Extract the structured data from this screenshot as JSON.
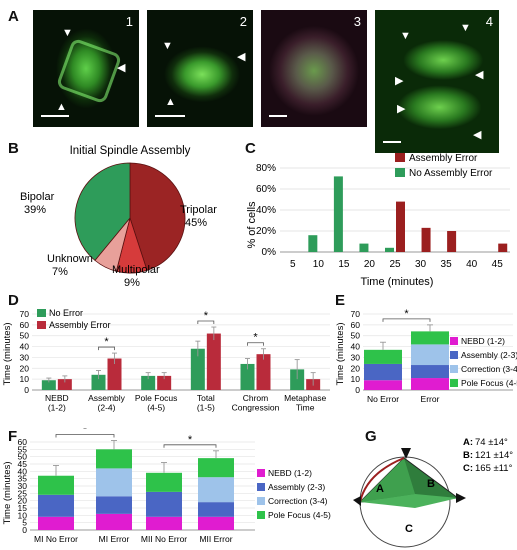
{
  "panel_letters": {
    "a": "A",
    "b": "B",
    "c": "C",
    "d": "D",
    "e": "E",
    "f": "F",
    "g": "G"
  },
  "panel_a": {
    "images": [
      {
        "number": "1"
      },
      {
        "number": "2"
      },
      {
        "number": "3"
      },
      {
        "number": "4"
      }
    ]
  },
  "chart_data": [
    {
      "id": "B",
      "type": "pie",
      "title": "Initial Spindle Assembly",
      "slices": [
        {
          "label": "Tripolar",
          "value": 45,
          "pct": "45%",
          "color": "#9b2424"
        },
        {
          "label": "Multipolar",
          "value": 9,
          "pct": "9%",
          "color": "#d63b3b"
        },
        {
          "label": "Unknown",
          "value": 7,
          "pct": "7%",
          "color": "#e8a09a"
        },
        {
          "label": "Bipolar",
          "value": 39,
          "pct": "39%",
          "color": "#2e9c5a"
        }
      ]
    },
    {
      "id": "C",
      "type": "bar",
      "xlabel": "Time (minutes)",
      "ylabel": "% of cells",
      "ylim": [
        0,
        80
      ],
      "yticks": [
        "0%",
        "20%",
        "40%",
        "60%",
        "80%"
      ],
      "categories": [
        "5",
        "10",
        "15",
        "20",
        "25",
        "30",
        "35",
        "40",
        "45"
      ],
      "series": [
        {
          "name": "Assembly Error",
          "color": "#9b1f1f",
          "values": [
            0,
            0,
            0,
            0,
            48,
            23,
            20,
            0,
            8
          ]
        },
        {
          "name": "No Assembly Error",
          "color": "#2e9c5a",
          "values": [
            0,
            16,
            72,
            8,
            4,
            0,
            0,
            0,
            0
          ]
        }
      ]
    },
    {
      "id": "D",
      "type": "bar",
      "ylabel": "Time (minutes)",
      "ylim": [
        0,
        70
      ],
      "yticks": [
        "0",
        "10",
        "20",
        "30",
        "40",
        "50",
        "60",
        "70"
      ],
      "categories": [
        "NEBD\n(1-2)",
        "Assembly\n(2-4)",
        "Pole Focus\n(4-5)",
        "Total\n(1-5)",
        "Chrom\nCongression",
        "Metaphase\nTime"
      ],
      "series": [
        {
          "name": "No Error",
          "color": "#2e9c5a",
          "values": [
            9,
            14,
            13,
            38,
            24,
            19
          ],
          "err": [
            2,
            4,
            3,
            7,
            5,
            9
          ]
        },
        {
          "name": "Assembly Error",
          "color": "#b92b3b",
          "values": [
            10,
            29,
            13,
            52,
            33,
            10
          ],
          "err": [
            3,
            5,
            3,
            6,
            5,
            6
          ]
        }
      ],
      "significance": [
        "Assembly\n(2-4)",
        "Total\n(1-5)",
        "Chrom\nCongression"
      ],
      "sig_mark": "*"
    },
    {
      "id": "E",
      "type": "bar",
      "stacked": true,
      "ylabel": "Time (minutes)",
      "ylim": [
        0,
        70
      ],
      "yticks": [
        "0",
        "10",
        "20",
        "30",
        "40",
        "50",
        "60",
        "70"
      ],
      "categories": [
        "No Error",
        "Error"
      ],
      "series": [
        {
          "name": "NEBD (1-2)",
          "color": "#e01cd0",
          "values": [
            9,
            11
          ]
        },
        {
          "name": "Assembly (2-3)",
          "color": "#4a66c4",
          "values": [
            15,
            12
          ]
        },
        {
          "name": "Correction (3-4)",
          "color": "#9ec3ea",
          "values": [
            0,
            19
          ]
        },
        {
          "name": "Pole Focus (4-5)",
          "color": "#2ec24a",
          "values": [
            13,
            12
          ]
        }
      ],
      "totals_err": [
        7,
        6
      ],
      "sig_mark": "*"
    },
    {
      "id": "F",
      "type": "bar",
      "stacked": true,
      "ylabel": "Time (minutes)",
      "ylim": [
        0,
        60
      ],
      "yticks": [
        "0",
        "5",
        "10",
        "15",
        "20",
        "25",
        "30",
        "35",
        "40",
        "45",
        "50",
        "55",
        "60"
      ],
      "categories": [
        "MI No Error",
        "MI Error",
        "MII No Error",
        "MII Error"
      ],
      "series": [
        {
          "name": "NEBD (1-2)",
          "color": "#e01cd0",
          "values": [
            9,
            11,
            9,
            9
          ]
        },
        {
          "name": "Assembly (2-3)",
          "color": "#4a66c4",
          "values": [
            15,
            12,
            17,
            10
          ]
        },
        {
          "name": "Correction (3-4)",
          "color": "#9ec3ea",
          "values": [
            0,
            19,
            0,
            17
          ]
        },
        {
          "name": "Pole Focus (4-5)",
          "color": "#2ec24a",
          "values": [
            13,
            13,
            13,
            13
          ]
        }
      ],
      "totals_err": [
        7,
        6,
        7,
        5
      ],
      "sig_mark": "*"
    },
    {
      "id": "G",
      "type": "diagram",
      "angles": [
        {
          "label": "A:",
          "value": "74 ±14°"
        },
        {
          "label": "B:",
          "value": "121 ±14°"
        },
        {
          "label": "C:",
          "value": "165 ±11°"
        }
      ],
      "region_labels": [
        "A",
        "B",
        "C"
      ]
    }
  ]
}
